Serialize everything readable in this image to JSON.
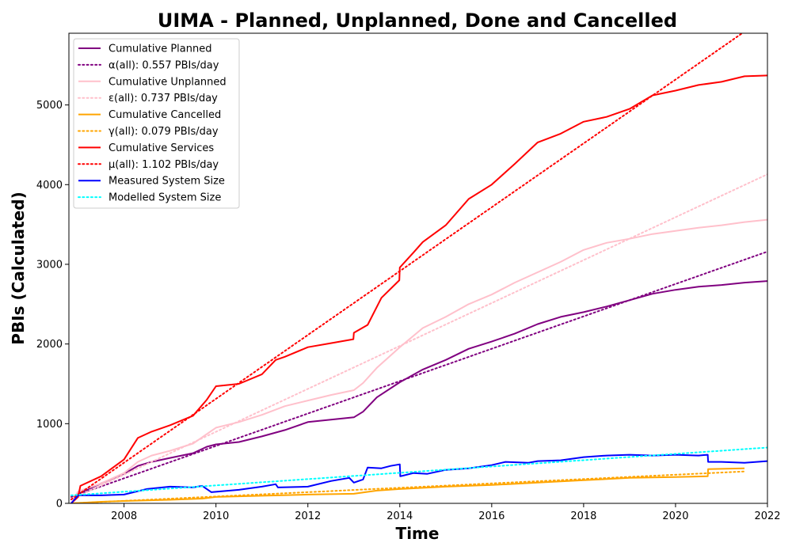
{
  "chart_data": {
    "type": "line",
    "title": "UIMA - Planned, Unplanned, Done  and Cancelled",
    "xlabel": "Time",
    "ylabel": "PBIs (Calculated)",
    "xlim": [
      2006.8,
      2022.0
    ],
    "ylim": [
      0,
      5900
    ],
    "x_ticks": [
      2008,
      2010,
      2012,
      2014,
      2016,
      2018,
      2020,
      2022
    ],
    "x_tick_labels": [
      "2008",
      "2010",
      "2012",
      "2014",
      "2016",
      "2018",
      "2020",
      "2022"
    ],
    "y_ticks": [
      0,
      1000,
      2000,
      3000,
      4000,
      5000
    ],
    "y_tick_labels": [
      "0",
      "1000",
      "2000",
      "3000",
      "4000",
      "5000"
    ],
    "legend_position": "top-left",
    "series": [
      {
        "name": "Cumulative Planned",
        "color": "#800080",
        "style": "solid",
        "points": [
          [
            2006.85,
            0
          ],
          [
            2007.0,
            120
          ],
          [
            2007.5,
            250
          ],
          [
            2008.0,
            370
          ],
          [
            2008.3,
            470
          ],
          [
            2008.6,
            520
          ],
          [
            2009.0,
            570
          ],
          [
            2009.5,
            630
          ],
          [
            2009.8,
            710
          ],
          [
            2010.0,
            740
          ],
          [
            2010.5,
            770
          ],
          [
            2011.0,
            840
          ],
          [
            2011.5,
            920
          ],
          [
            2012.0,
            1020
          ],
          [
            2012.5,
            1050
          ],
          [
            2013.0,
            1080
          ],
          [
            2013.2,
            1150
          ],
          [
            2013.5,
            1330
          ],
          [
            2014.0,
            1520
          ],
          [
            2014.5,
            1680
          ],
          [
            2015.0,
            1800
          ],
          [
            2015.5,
            1940
          ],
          [
            2016.0,
            2030
          ],
          [
            2016.5,
            2130
          ],
          [
            2017.0,
            2250
          ],
          [
            2017.5,
            2340
          ],
          [
            2018.0,
            2400
          ],
          [
            2018.5,
            2470
          ],
          [
            2019.0,
            2550
          ],
          [
            2019.5,
            2630
          ],
          [
            2020.0,
            2680
          ],
          [
            2020.5,
            2720
          ],
          [
            2021.0,
            2740
          ],
          [
            2021.5,
            2770
          ],
          [
            2022.0,
            2790
          ]
        ]
      },
      {
        "name": "α(all): 0.557 PBIs/day",
        "color": "#800080",
        "style": "dotted",
        "points": [
          [
            2006.85,
            80
          ],
          [
            2022.0,
            3160
          ]
        ]
      },
      {
        "name": "Cumulative Unplanned",
        "color": "#ffc0cb",
        "style": "solid",
        "points": [
          [
            2006.85,
            0
          ],
          [
            2007.0,
            150
          ],
          [
            2007.5,
            250
          ],
          [
            2008.0,
            380
          ],
          [
            2008.3,
            520
          ],
          [
            2008.6,
            600
          ],
          [
            2009.0,
            660
          ],
          [
            2009.5,
            750
          ],
          [
            2010.0,
            950
          ],
          [
            2010.5,
            1020
          ],
          [
            2011.0,
            1110
          ],
          [
            2011.5,
            1220
          ],
          [
            2012.0,
            1290
          ],
          [
            2012.5,
            1360
          ],
          [
            2013.0,
            1420
          ],
          [
            2013.2,
            1510
          ],
          [
            2013.5,
            1700
          ],
          [
            2014.0,
            1960
          ],
          [
            2014.5,
            2200
          ],
          [
            2015.0,
            2340
          ],
          [
            2015.5,
            2500
          ],
          [
            2016.0,
            2620
          ],
          [
            2016.5,
            2770
          ],
          [
            2017.0,
            2900
          ],
          [
            2017.5,
            3030
          ],
          [
            2018.0,
            3180
          ],
          [
            2018.5,
            3270
          ],
          [
            2019.0,
            3320
          ],
          [
            2019.5,
            3380
          ],
          [
            2020.0,
            3420
          ],
          [
            2020.5,
            3460
          ],
          [
            2021.0,
            3490
          ],
          [
            2021.5,
            3530
          ],
          [
            2022.0,
            3560
          ]
        ]
      },
      {
        "name": "ε(all): 0.737 PBIs/day",
        "color": "#ffc0cb",
        "style": "dotted",
        "points": [
          [
            2006.85,
            50
          ],
          [
            2022.0,
            4130
          ]
        ]
      },
      {
        "name": "Cumulative Cancelled",
        "color": "#ffa500",
        "style": "solid",
        "points": [
          [
            2006.85,
            0
          ],
          [
            2007.5,
            20
          ],
          [
            2008.0,
            30
          ],
          [
            2009.0,
            45
          ],
          [
            2009.7,
            60
          ],
          [
            2010.0,
            80
          ],
          [
            2011.0,
            95
          ],
          [
            2012.0,
            110
          ],
          [
            2013.0,
            120
          ],
          [
            2013.5,
            160
          ],
          [
            2014.0,
            180
          ],
          [
            2015.0,
            210
          ],
          [
            2016.0,
            230
          ],
          [
            2017.0,
            260
          ],
          [
            2018.0,
            290
          ],
          [
            2019.0,
            320
          ],
          [
            2020.0,
            330
          ],
          [
            2020.7,
            340
          ],
          [
            2020.71,
            430
          ],
          [
            2021.5,
            440
          ]
        ]
      },
      {
        "name": "γ(all): 0.079 PBIs/day",
        "color": "#ffa500",
        "style": "dotted",
        "points": [
          [
            2006.85,
            0
          ],
          [
            2021.5,
            400
          ]
        ]
      },
      {
        "name": "Cumulative Services",
        "color": "#ff0000",
        "style": "solid",
        "points": [
          [
            2006.85,
            0
          ],
          [
            2007.0,
            80
          ],
          [
            2007.05,
            220
          ],
          [
            2007.5,
            340
          ],
          [
            2008.0,
            550
          ],
          [
            2008.3,
            820
          ],
          [
            2008.6,
            900
          ],
          [
            2009.0,
            980
          ],
          [
            2009.5,
            1100
          ],
          [
            2009.8,
            1300
          ],
          [
            2010.0,
            1470
          ],
          [
            2010.5,
            1500
          ],
          [
            2011.0,
            1620
          ],
          [
            2011.3,
            1800
          ],
          [
            2011.5,
            1840
          ],
          [
            2012.0,
            1960
          ],
          [
            2012.5,
            2010
          ],
          [
            2012.99,
            2060
          ],
          [
            2013.0,
            2140
          ],
          [
            2013.3,
            2240
          ],
          [
            2013.6,
            2580
          ],
          [
            2013.99,
            2800
          ],
          [
            2014.0,
            2960
          ],
          [
            2014.3,
            3150
          ],
          [
            2014.5,
            3280
          ],
          [
            2015.0,
            3490
          ],
          [
            2015.5,
            3820
          ],
          [
            2016.0,
            4000
          ],
          [
            2016.5,
            4260
          ],
          [
            2017.0,
            4530
          ],
          [
            2017.5,
            4640
          ],
          [
            2018.0,
            4790
          ],
          [
            2018.5,
            4850
          ],
          [
            2019.0,
            4950
          ],
          [
            2019.5,
            5120
          ],
          [
            2020.0,
            5180
          ],
          [
            2020.5,
            5250
          ],
          [
            2021.0,
            5290
          ],
          [
            2021.5,
            5360
          ],
          [
            2022.0,
            5370
          ]
        ]
      },
      {
        "name": "μ(all): 1.102 PBIs/day",
        "color": "#ff0000",
        "style": "dotted",
        "points": [
          [
            2006.85,
            50
          ],
          [
            2021.45,
            5900
          ]
        ]
      },
      {
        "name": "Measured System Size",
        "color": "#0000ff",
        "style": "solid",
        "points": [
          [
            2006.85,
            0
          ],
          [
            2007.0,
            100
          ],
          [
            2007.5,
            100
          ],
          [
            2008.0,
            110
          ],
          [
            2008.5,
            180
          ],
          [
            2009.0,
            210
          ],
          [
            2009.5,
            200
          ],
          [
            2009.7,
            220
          ],
          [
            2009.9,
            140
          ],
          [
            2010.5,
            170
          ],
          [
            2011.0,
            210
          ],
          [
            2011.3,
            240
          ],
          [
            2011.35,
            200
          ],
          [
            2012.0,
            210
          ],
          [
            2012.5,
            280
          ],
          [
            2012.9,
            320
          ],
          [
            2013.0,
            260
          ],
          [
            2013.2,
            300
          ],
          [
            2013.3,
            450
          ],
          [
            2013.6,
            440
          ],
          [
            2013.8,
            470
          ],
          [
            2014.0,
            490
          ],
          [
            2014.01,
            340
          ],
          [
            2014.3,
            380
          ],
          [
            2014.6,
            370
          ],
          [
            2015.0,
            420
          ],
          [
            2015.5,
            440
          ],
          [
            2016.0,
            480
          ],
          [
            2016.3,
            520
          ],
          [
            2016.8,
            510
          ],
          [
            2017.0,
            530
          ],
          [
            2017.5,
            540
          ],
          [
            2018.0,
            580
          ],
          [
            2018.5,
            600
          ],
          [
            2019.0,
            610
          ],
          [
            2019.5,
            600
          ],
          [
            2020.0,
            610
          ],
          [
            2020.5,
            600
          ],
          [
            2020.7,
            610
          ],
          [
            2020.71,
            520
          ],
          [
            2021.0,
            520
          ],
          [
            2021.5,
            510
          ],
          [
            2022.0,
            530
          ]
        ]
      },
      {
        "name": "Modelled System Size",
        "color": "#00ffff",
        "style": "dotted",
        "points": [
          [
            2006.85,
            100
          ],
          [
            2022.0,
            700
          ]
        ]
      }
    ]
  }
}
